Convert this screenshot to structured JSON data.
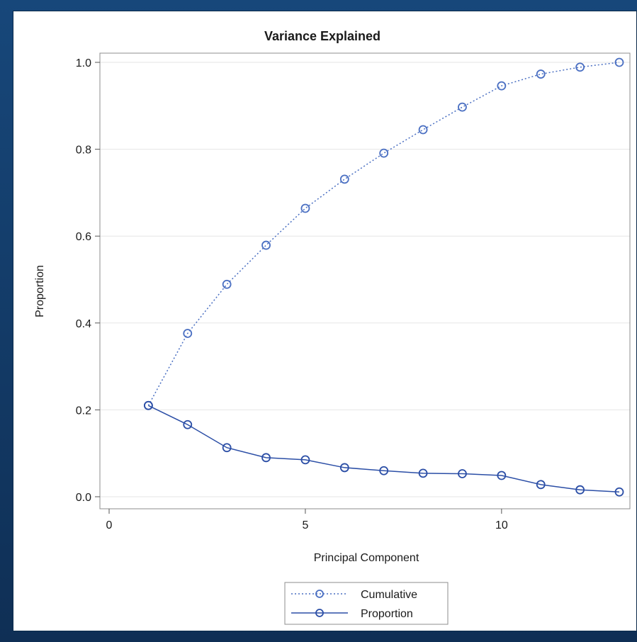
{
  "chart_data": {
    "type": "line",
    "title": "Variance Explained",
    "xlabel": "Principal Component",
    "ylabel": "Proportion",
    "xlim": [
      0,
      13
    ],
    "ylim": [
      0.0,
      1.0
    ],
    "xticks": [
      0,
      5,
      10
    ],
    "xtick_labels": [
      "0",
      "5",
      "10"
    ],
    "yticks": [
      0.0,
      0.2,
      0.4,
      0.6,
      0.8,
      1.0
    ],
    "ytick_labels": [
      "0.0",
      "0.2",
      "0.4",
      "0.6",
      "0.8",
      "1.0"
    ],
    "grid": "horizontal",
    "legend_position": "bottom",
    "x": [
      1,
      2,
      3,
      4,
      5,
      6,
      7,
      8,
      9,
      10,
      11,
      12,
      13
    ],
    "series": [
      {
        "name": "Cumulative",
        "style": "dotted",
        "color": "#4a6fc2",
        "values": [
          0.21,
          0.376,
          0.489,
          0.579,
          0.664,
          0.731,
          0.791,
          0.845,
          0.897,
          0.946,
          0.973,
          0.989,
          1.0
        ]
      },
      {
        "name": "Proportion",
        "style": "solid",
        "color": "#2b4ea6",
        "values": [
          0.21,
          0.166,
          0.113,
          0.09,
          0.085,
          0.067,
          0.06,
          0.054,
          0.053,
          0.049,
          0.028,
          0.016,
          0.011
        ]
      }
    ]
  }
}
